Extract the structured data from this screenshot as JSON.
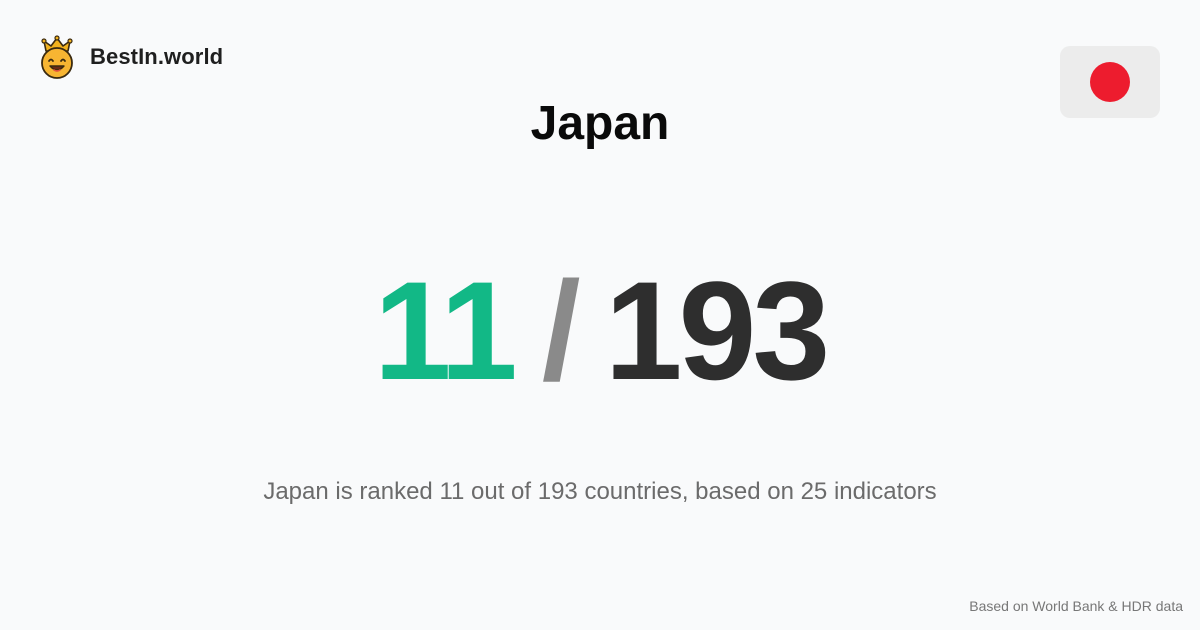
{
  "brand": {
    "name": "BestIn.world",
    "logo_icon": "crown-smiley-icon"
  },
  "country": {
    "name": "Japan",
    "flag_icon": "japan-flag-icon",
    "flag_color": "#ed1c2e"
  },
  "ranking": {
    "rank": "11",
    "separator": "/",
    "total": "193",
    "rank_color": "#12b886",
    "total_color": "#2e2e2e",
    "separator_color": "#8a8a8a"
  },
  "summary": "Japan is ranked 11 out of 193 countries, based on 25 indicators",
  "footer": {
    "source_note": "Based on World Bank & HDR data"
  }
}
